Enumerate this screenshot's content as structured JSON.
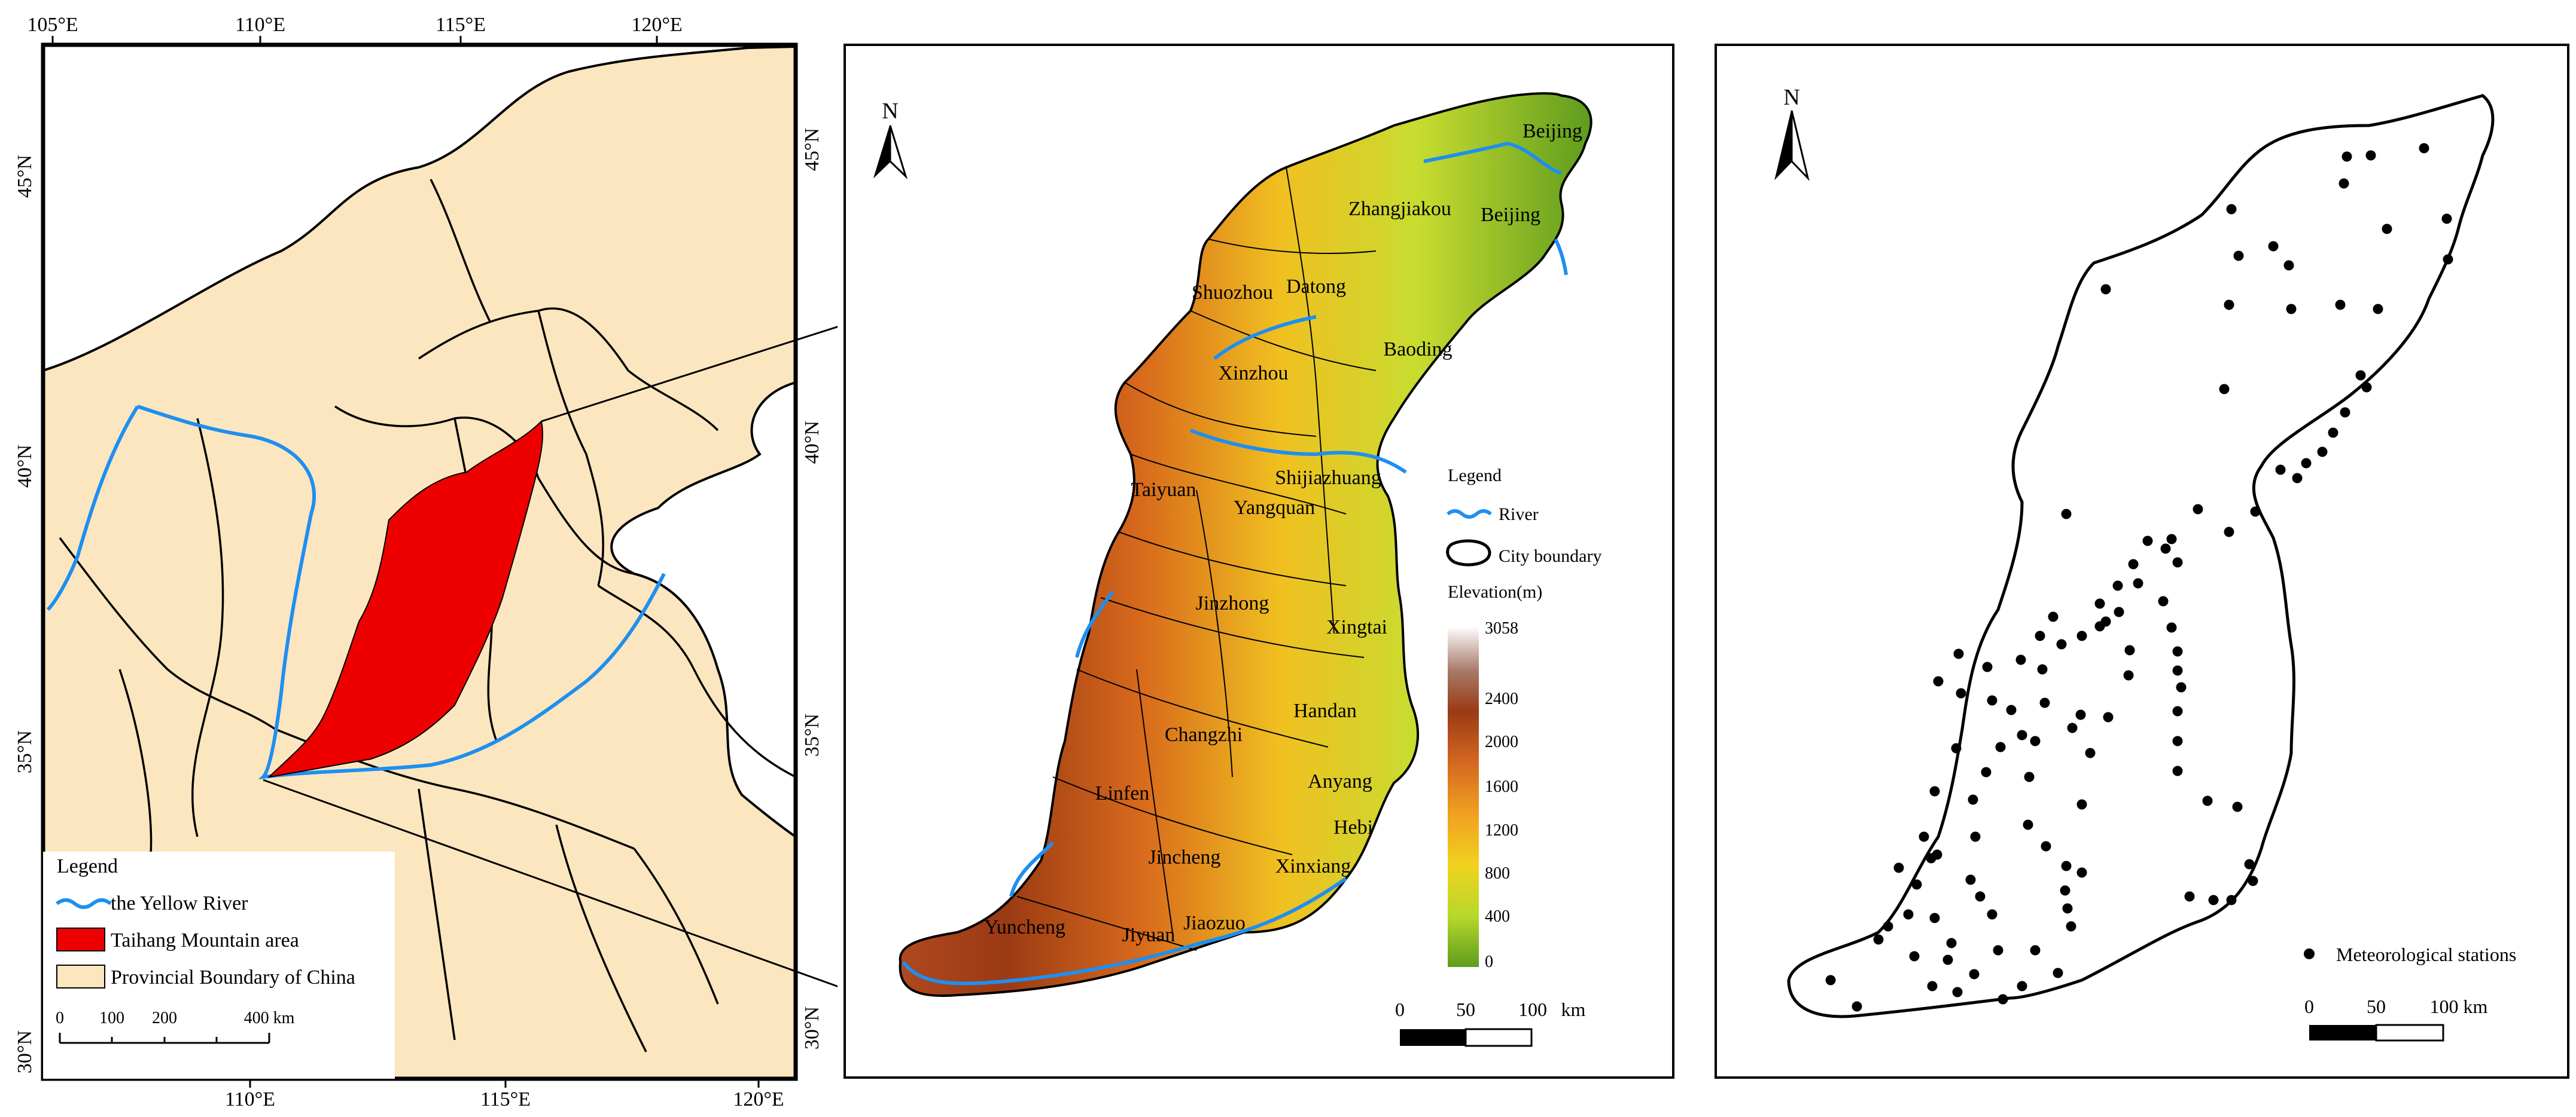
{
  "colors": {
    "land": "#fbe6bf",
    "river": "#1e8ff0",
    "taihang": "#ee0000",
    "boundary": "#000000",
    "dem_low": "#5e9c1e",
    "dem_mid": "#f0d21e",
    "dem_high": "#8a2a10",
    "dem_peak": "#ffffff"
  },
  "panel_a": {
    "top_ticks": [
      "105°E",
      "110°E",
      "115°E",
      "120°E"
    ],
    "bottom_ticks": [
      "110°E",
      "115°E",
      "120°E"
    ],
    "left_ticks": [
      "45°N",
      "40°N",
      "35°N",
      "30°N"
    ],
    "right_ticks": [
      "45°N",
      "40°N",
      "35°N",
      "30°N"
    ],
    "legend": {
      "title": "Legend",
      "items": [
        "the Yellow River",
        "Taihang Mountain area",
        "Provincial Boundary of China"
      ],
      "scale_labels": [
        "0",
        "100",
        "200",
        "400 km"
      ]
    }
  },
  "panel_b": {
    "north_label": "N",
    "cities": [
      "Beijing",
      "Zhangjiakou",
      "Beijing",
      "Shuozhou",
      "Datong",
      "Baoding",
      "Xinzhou",
      "Taiyuan",
      "Shijiazhuang",
      "Yangquan",
      "Jinzhong",
      "Xingtai",
      "Handan",
      "Changzhi",
      "Anyang",
      "Linfen",
      "Hebi",
      "Jincheng",
      "Xinxiang",
      "Jiaozuo",
      "Yuncheng",
      "Jiyuan"
    ],
    "legend": {
      "title": "Legend",
      "river": "River",
      "city_boundary": "City boundary",
      "elevation_title": "Elevation(m)",
      "elevation_ticks": [
        "3058",
        "2400",
        "2000",
        "1600",
        "1200",
        "800",
        "400",
        "0"
      ]
    },
    "scale_labels": [
      "0",
      "50",
      "100",
      "km"
    ]
  },
  "panel_c": {
    "north_label": "N",
    "legend_item": "Meteorological stations",
    "scale_labels": [
      "0",
      "50",
      "100 km"
    ]
  }
}
